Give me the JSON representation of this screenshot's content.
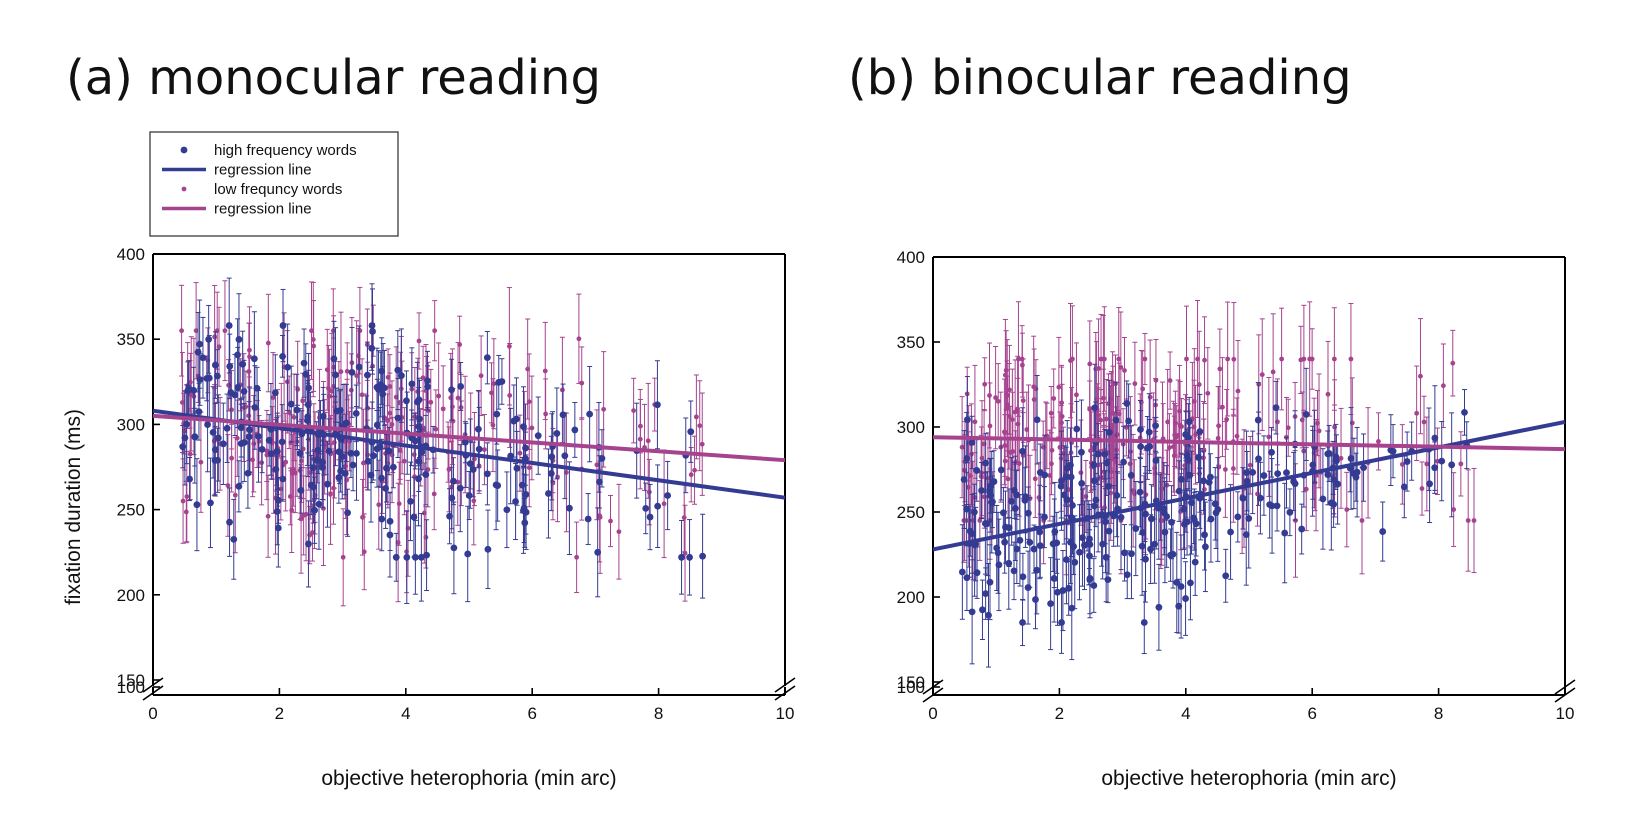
{
  "titles": {
    "a": "(a) monocular reading",
    "b": "(b) binocular reading"
  },
  "colors": {
    "high": "#343b92",
    "low": "#a6438f",
    "axis": "#000000"
  },
  "legend": {
    "items": [
      {
        "label": "high frequency words",
        "kind": "marker",
        "series": "high"
      },
      {
        "label": "regression line",
        "kind": "line",
        "series": "high"
      },
      {
        "label": "low frequncy words",
        "kind": "marker",
        "series": "low"
      },
      {
        "label": "regression line",
        "kind": "line",
        "series": "low"
      }
    ]
  },
  "chart_data": [
    {
      "type": "scatter",
      "title": "(a) monocular reading",
      "xlabel": "objective heterophoria (min arc)",
      "ylabel": "fixation duration (ms)",
      "xlim": [
        0,
        10
      ],
      "ylim": [
        150,
        400
      ],
      "y_axis_break": true,
      "x_ticks": [
        "0",
        "2",
        "4",
        "6",
        "8",
        "10"
      ],
      "y_ticks": [
        "100",
        "150",
        "200",
        "250",
        "300",
        "350",
        "400"
      ],
      "legend_position": "top-left",
      "series": [
        {
          "name": "high frequency words",
          "kind": "points_with_error_bars",
          "approx_n": 240,
          "x_range": [
            0.4,
            8.7
          ],
          "y_range": [
            222,
            358
          ],
          "error_bar_half_width_ms": 20
        },
        {
          "name": "regression line",
          "kind": "line",
          "points": [
            [
              0,
              308
            ],
            [
              10,
              257
            ]
          ]
        },
        {
          "name": "low frequncy words",
          "kind": "points_with_error_bars",
          "approx_n": 240,
          "x_range": [
            0.4,
            8.7
          ],
          "y_range": [
            222,
            355
          ],
          "error_bar_half_width_ms": 25
        },
        {
          "name": "regression line",
          "kind": "line",
          "points": [
            [
              0,
              305
            ],
            [
              10,
              279
            ]
          ]
        }
      ]
    },
    {
      "type": "scatter",
      "title": "(b) binocular reading",
      "xlabel": "objective heterophoria (min arc)",
      "ylabel": "",
      "xlim": [
        0,
        10
      ],
      "ylim": [
        150,
        400
      ],
      "y_axis_break": true,
      "x_ticks": [
        "0",
        "2",
        "4",
        "6",
        "8",
        "10"
      ],
      "y_ticks": [
        "100",
        "150",
        "200",
        "250",
        "300",
        "350",
        "400"
      ],
      "series": [
        {
          "name": "high frequency words",
          "kind": "points_with_error_bars",
          "approx_n": 260,
          "x_range": [
            0.4,
            8.7
          ],
          "y_range": [
            185,
            318
          ],
          "error_bar_half_width_ms": 22
        },
        {
          "name": "regression line",
          "kind": "line",
          "points": [
            [
              0,
              228
            ],
            [
              10,
              303
            ]
          ]
        },
        {
          "name": "low frequncy words",
          "kind": "points_with_error_bars",
          "approx_n": 260,
          "x_range": [
            0.4,
            8.7
          ],
          "y_range": [
            245,
            340
          ],
          "error_bar_half_width_ms": 25
        },
        {
          "name": "regression line",
          "kind": "line",
          "points": [
            [
              0,
              294
            ],
            [
              10,
              287
            ]
          ]
        }
      ]
    }
  ]
}
